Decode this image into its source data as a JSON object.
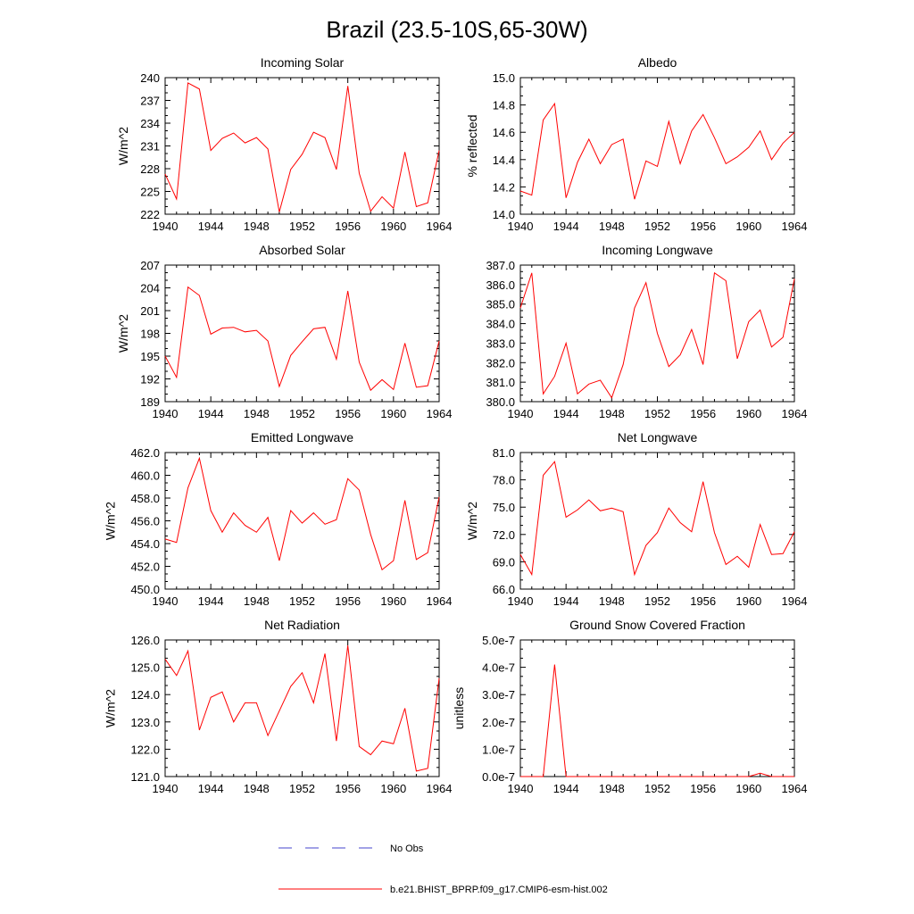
{
  "figure": {
    "title": "Brazil (23.5-10S,65-30W)"
  },
  "colors": {
    "model": "#ff0000",
    "obs": "#4444cc",
    "axes": "#000000",
    "background": "#ffffff"
  },
  "legend": {
    "placement": "bottom-center",
    "entries": [
      {
        "label": "No Obs",
        "color": "#4444cc",
        "style": "dashed"
      },
      {
        "label": "b.e21.BHIST_BPRP.f09_g17.CMIP6-esm-hist.002",
        "color": "#ff0000",
        "style": "solid"
      }
    ]
  },
  "chart_data": [
    {
      "type": "line",
      "title": "Incoming Solar",
      "xlabel": "",
      "ylabel": "W/m^2",
      "xlim": [
        1940,
        1964
      ],
      "ylim": [
        222,
        240
      ],
      "xticks": [
        "1940",
        "1944",
        "1948",
        "1952",
        "1956",
        "1960",
        "1964"
      ],
      "yticks": [
        "222",
        "225",
        "228",
        "231",
        "234",
        "237",
        "240"
      ],
      "series": [
        {
          "x": [
            1940,
            1941,
            1942,
            1943,
            1944,
            1945,
            1946,
            1947,
            1948,
            1949,
            1950,
            1951,
            1952,
            1953,
            1954,
            1955,
            1956,
            1957,
            1958,
            1959,
            1960,
            1961,
            1962,
            1963,
            1964
          ],
          "values": [
            227.3,
            224.0,
            239.3,
            238.5,
            230.4,
            232.0,
            232.7,
            231.4,
            232.1,
            230.6,
            222.3,
            227.9,
            229.9,
            232.8,
            232.1,
            227.9,
            238.9,
            227.4,
            222.4,
            224.3,
            222.8,
            230.2,
            223.0,
            223.5,
            230.4
          ]
        }
      ]
    },
    {
      "type": "line",
      "title": "Albedo",
      "xlabel": "",
      "ylabel": "% reflected",
      "xlim": [
        1940,
        1964
      ],
      "ylim": [
        14.0,
        15.0
      ],
      "xticks": [
        "1940",
        "1944",
        "1948",
        "1952",
        "1956",
        "1960",
        "1964"
      ],
      "yticks": [
        "14.0",
        "14.2",
        "14.4",
        "14.6",
        "14.8",
        "15.0"
      ],
      "series": [
        {
          "x": [
            1940,
            1941,
            1942,
            1943,
            1944,
            1945,
            1946,
            1947,
            1948,
            1949,
            1950,
            1951,
            1952,
            1953,
            1954,
            1955,
            1956,
            1957,
            1958,
            1959,
            1960,
            1961,
            1962,
            1963,
            1964
          ],
          "values": [
            14.17,
            14.14,
            14.69,
            14.81,
            14.12,
            14.38,
            14.55,
            14.37,
            14.51,
            14.55,
            14.11,
            14.39,
            14.35,
            14.68,
            14.37,
            14.61,
            14.73,
            14.56,
            14.37,
            14.42,
            14.49,
            14.61,
            14.4,
            14.52,
            14.6
          ]
        }
      ]
    },
    {
      "type": "line",
      "title": "Absorbed Solar",
      "xlabel": "",
      "ylabel": "W/m^2",
      "xlim": [
        1940,
        1964
      ],
      "ylim": [
        189,
        207
      ],
      "xticks": [
        "1940",
        "1944",
        "1948",
        "1952",
        "1956",
        "1960",
        "1964"
      ],
      "yticks": [
        "189",
        "192",
        "195",
        "198",
        "201",
        "204",
        "207"
      ],
      "series": [
        {
          "x": [
            1940,
            1941,
            1942,
            1943,
            1944,
            1945,
            1946,
            1947,
            1948,
            1949,
            1950,
            1951,
            1952,
            1953,
            1954,
            1955,
            1956,
            1957,
            1958,
            1959,
            1960,
            1961,
            1962,
            1963,
            1964
          ],
          "values": [
            195.0,
            192.2,
            204.1,
            203.0,
            197.9,
            198.7,
            198.8,
            198.2,
            198.4,
            197.0,
            191.0,
            195.1,
            196.9,
            198.6,
            198.8,
            194.6,
            203.6,
            194.2,
            190.5,
            191.9,
            190.6,
            196.7,
            190.9,
            191.1,
            197.0
          ]
        }
      ]
    },
    {
      "type": "line",
      "title": "Incoming Longwave",
      "xlabel": "",
      "ylabel": "",
      "xlim": [
        1940,
        1964
      ],
      "ylim": [
        380.0,
        387.0
      ],
      "xticks": [
        "1940",
        "1944",
        "1948",
        "1952",
        "1956",
        "1960",
        "1964"
      ],
      "yticks": [
        "380.0",
        "381.0",
        "382.0",
        "383.0",
        "384.0",
        "385.0",
        "386.0",
        "387.0"
      ],
      "series": [
        {
          "x": [
            1940,
            1941,
            1942,
            1943,
            1944,
            1945,
            1946,
            1947,
            1948,
            1949,
            1950,
            1951,
            1952,
            1953,
            1954,
            1955,
            1956,
            1957,
            1958,
            1959,
            1960,
            1961,
            1962,
            1963,
            1964
          ],
          "values": [
            384.8,
            386.6,
            380.4,
            381.3,
            383.0,
            380.4,
            380.9,
            381.1,
            380.2,
            381.9,
            384.8,
            386.1,
            383.5,
            381.8,
            382.4,
            383.7,
            381.9,
            386.6,
            386.2,
            382.2,
            384.1,
            384.7,
            382.8,
            383.3,
            386.3
          ]
        }
      ]
    },
    {
      "type": "line",
      "title": "Emitted Longwave",
      "xlabel": "",
      "ylabel": "W/m^2",
      "xlim": [
        1940,
        1964
      ],
      "ylim": [
        450.0,
        462.0
      ],
      "xticks": [
        "1940",
        "1944",
        "1948",
        "1952",
        "1956",
        "1960",
        "1964"
      ],
      "yticks": [
        "450.0",
        "452.0",
        "454.0",
        "456.0",
        "458.0",
        "460.0",
        "462.0"
      ],
      "series": [
        {
          "x": [
            1940,
            1941,
            1942,
            1943,
            1944,
            1945,
            1946,
            1947,
            1948,
            1949,
            1950,
            1951,
            1952,
            1953,
            1954,
            1955,
            1956,
            1957,
            1958,
            1959,
            1960,
            1961,
            1962,
            1963,
            1964
          ],
          "values": [
            454.4,
            454.1,
            458.9,
            461.5,
            456.9,
            455.0,
            456.7,
            455.6,
            455.0,
            456.3,
            452.5,
            456.9,
            455.8,
            456.7,
            455.7,
            456.1,
            459.7,
            458.7,
            454.8,
            451.7,
            452.5,
            457.8,
            452.6,
            453.2,
            458.1
          ]
        }
      ]
    },
    {
      "type": "line",
      "title": "Net Longwave",
      "xlabel": "",
      "ylabel": "W/m^2",
      "xlim": [
        1940,
        1964
      ],
      "ylim": [
        66.0,
        81.0
      ],
      "xticks": [
        "1940",
        "1944",
        "1948",
        "1952",
        "1956",
        "1960",
        "1964"
      ],
      "yticks": [
        "66.0",
        "69.0",
        "72.0",
        "75.0",
        "78.0",
        "81.0"
      ],
      "series": [
        {
          "x": [
            1940,
            1941,
            1942,
            1943,
            1944,
            1945,
            1946,
            1947,
            1948,
            1949,
            1950,
            1951,
            1952,
            1953,
            1954,
            1955,
            1956,
            1957,
            1958,
            1959,
            1960,
            1961,
            1962,
            1963,
            1964
          ],
          "values": [
            69.8,
            67.6,
            78.5,
            80.0,
            73.9,
            74.7,
            75.8,
            74.6,
            74.9,
            74.5,
            67.6,
            70.8,
            72.2,
            74.9,
            73.3,
            72.3,
            77.8,
            72.2,
            68.7,
            69.6,
            68.4,
            73.1,
            69.8,
            69.9,
            72.3
          ]
        }
      ]
    },
    {
      "type": "line",
      "title": "Net Radiation",
      "xlabel": "",
      "ylabel": "W/m^2",
      "xlim": [
        1940,
        1964
      ],
      "ylim": [
        121.0,
        126.0
      ],
      "xticks": [
        "1940",
        "1944",
        "1948",
        "1952",
        "1956",
        "1960",
        "1964"
      ],
      "yticks": [
        "121.0",
        "122.0",
        "123.0",
        "124.0",
        "125.0",
        "126.0"
      ],
      "series": [
        {
          "x": [
            1940,
            1941,
            1942,
            1943,
            1944,
            1945,
            1946,
            1947,
            1948,
            1949,
            1950,
            1951,
            1952,
            1953,
            1954,
            1955,
            1956,
            1957,
            1958,
            1959,
            1960,
            1961,
            1962,
            1963,
            1964
          ],
          "values": [
            125.3,
            124.7,
            125.6,
            122.7,
            123.9,
            124.1,
            123.0,
            123.7,
            123.7,
            122.5,
            123.4,
            124.3,
            124.8,
            123.7,
            125.5,
            122.3,
            125.8,
            122.1,
            121.8,
            122.3,
            122.2,
            123.5,
            121.2,
            121.3,
            124.6
          ]
        }
      ]
    },
    {
      "type": "line",
      "title": "Ground Snow Covered Fraction",
      "xlabel": "",
      "ylabel": "unitless",
      "xlim": [
        1940,
        1964
      ],
      "ylim": [
        0.0,
        5e-07
      ],
      "xticks": [
        "1940",
        "1944",
        "1948",
        "1952",
        "1956",
        "1960",
        "1964"
      ],
      "yticks": [
        "0.0e-7",
        "1.0e-7",
        "2.0e-7",
        "3.0e-7",
        "4.0e-7",
        "5.0e-7"
      ],
      "series": [
        {
          "x": [
            1940,
            1941,
            1942,
            1943,
            1944,
            1945,
            1946,
            1947,
            1948,
            1949,
            1950,
            1951,
            1952,
            1953,
            1954,
            1955,
            1956,
            1957,
            1958,
            1959,
            1960,
            1961,
            1962,
            1963,
            1964
          ],
          "values": [
            0,
            0,
            0,
            4.1e-07,
            0,
            0,
            0,
            0,
            0,
            0,
            0,
            0,
            0,
            0,
            0,
            0,
            0,
            0,
            0,
            0,
            0,
            1.2e-08,
            0,
            0,
            0
          ]
        }
      ]
    }
  ]
}
